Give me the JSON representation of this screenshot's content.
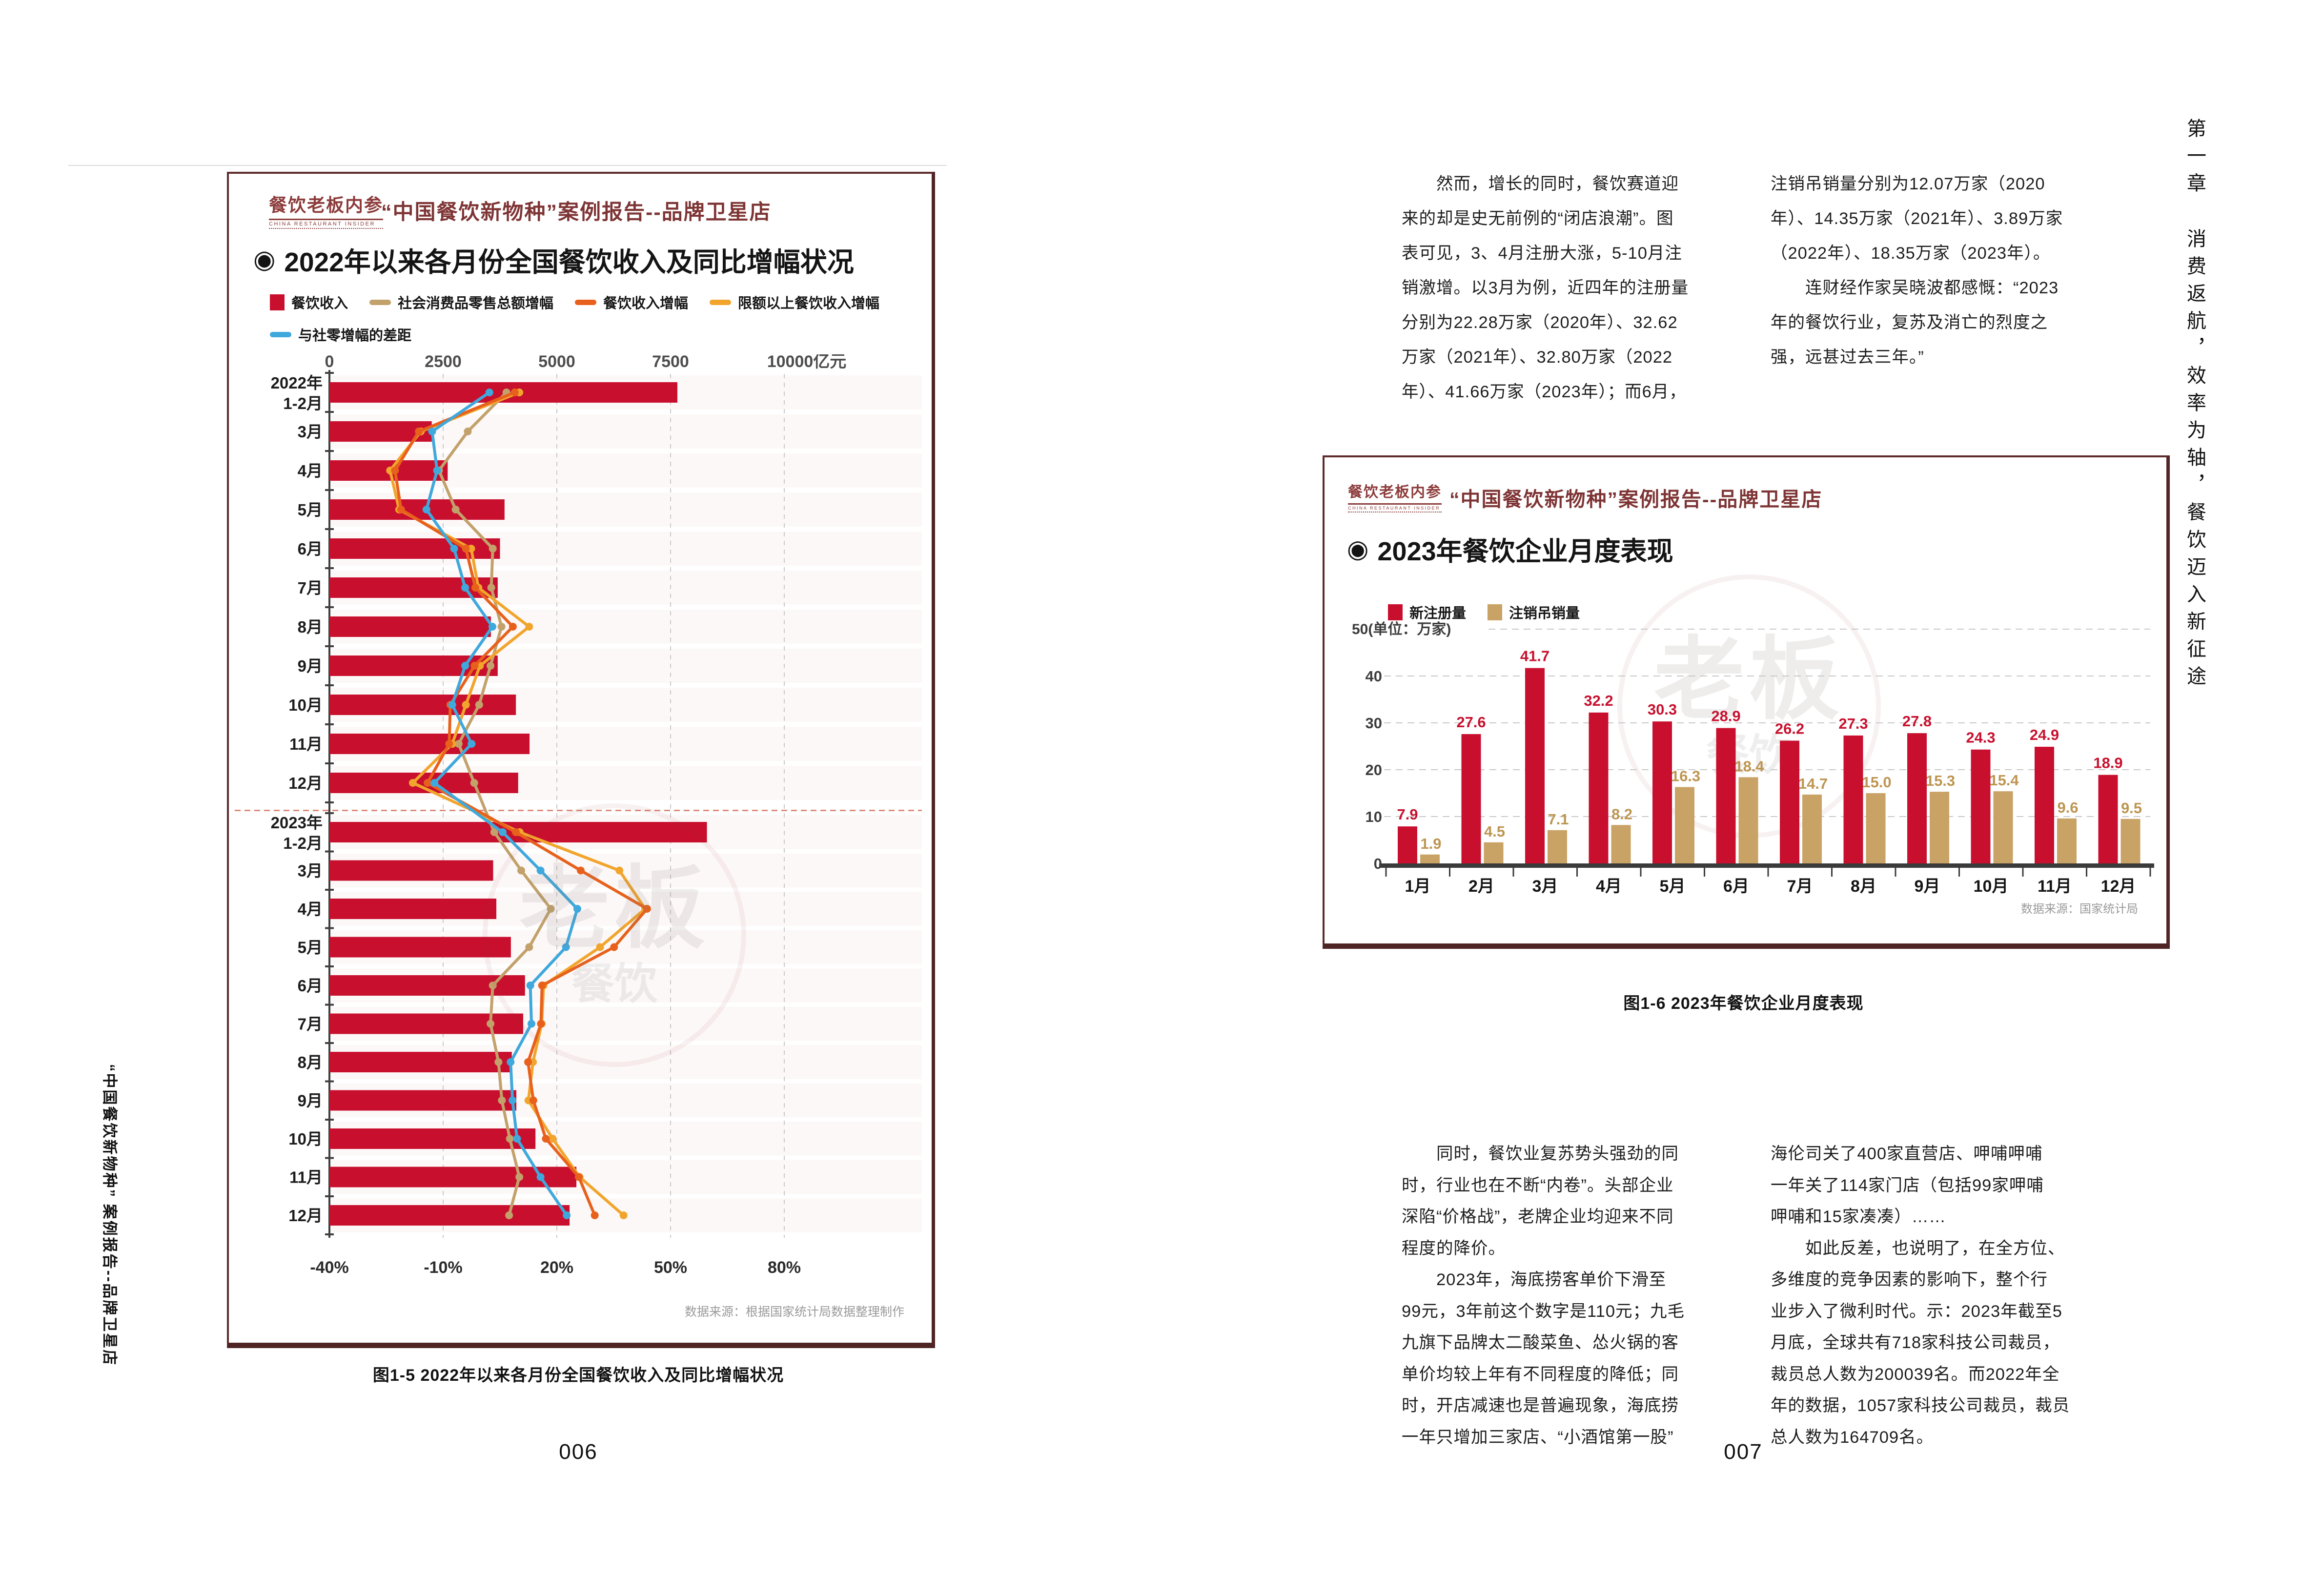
{
  "brand": {
    "logo": "餐饮老板内参",
    "logo_sub": "CHINA RESTAURANT INSIDER",
    "series_title": "“中国餐饮新物种”案例报告--品牌卫星店"
  },
  "left_page": {
    "margin_text": "“中国餐饮新物种” 案例报告--品牌卫星店",
    "page_number": "006",
    "caption": "图1-5 2022年以来各月份全国餐饮收入及同比增幅状况"
  },
  "right_page": {
    "page_number": "007",
    "caption": "图1-6 2023年餐饮企业月度表现",
    "chapter_marker": {
      "chapter": "第一章",
      "title": "消费返航，效率为轴，餐饮迈入新征途"
    },
    "text_top": {
      "col1": [
        "　　然而，增长的同时，餐饮赛道迎",
        "来的却是史无前例的“闭店浪潮”。图",
        "表可见，3、4月注册大涨，5-10月注",
        "销激增。以3月为例，近四年的注册量",
        "分别为22.28万家（2020年）、32.62",
        "万家（2021年）、32.80万家（2022",
        "年）、41.66万家（2023年）；而6月，"
      ],
      "col2": [
        "注销吊销量分别为12.07万家（2020",
        "年）、14.35万家（2021年）、3.89万家",
        "（2022年）、18.35万家（2023年）。",
        "　　连财经作家吴晓波都感慨：“2023",
        "年的餐饮行业，复苏及消亡的烈度之",
        "强，远甚过去三年。”"
      ]
    },
    "text_bottom": {
      "col1": [
        "　　同时，餐饮业复苏势头强劲的同",
        "时，行业也在不断“内卷”。头部企业",
        "深陷“价格战”，老牌企业均迎来不同",
        "程度的降价。",
        "　　2023年，海底捞客单价下滑至",
        "99元，3年前这个数字是110元；九毛",
        "九旗下品牌太二酸菜鱼、怂火锅的客",
        "单价均较上年有不同程度的降低；同",
        "时，开店减速也是普遍现象，海底捞",
        "一年只增加三家店、“小酒馆第一股”"
      ],
      "col2": [
        "海伦司关了400家直营店、呷哺呷哺",
        "一年关了114家门店（包括99家呷哺",
        "呷哺和15家凑凑）……",
        "　　如此反差，也说明了，在全方位、",
        "多维度的竞争因素的影响下，整个行",
        "业步入了微利时代。示：2023年截至5",
        "月底，全球共有718家科技公司裁员，",
        "裁员总人数为200039名。而2022年全",
        "年的数据，1057家科技公司裁员，裁员",
        "总人数为164709名。"
      ]
    }
  },
  "chart_data": [
    {
      "type": "bar+line",
      "orientation": "horizontal",
      "title": "2022年以来各月份全国餐饮收入及同比增幅状况",
      "bullet": "◉",
      "top_axis": {
        "ticks": [
          0,
          2500,
          5000,
          7500,
          10000
        ],
        "unit": "亿元"
      },
      "bottom_axis": {
        "tick_labels": [
          "-40%",
          "-10%",
          "20%",
          "50%",
          "80%"
        ],
        "range": [
          -40,
          80
        ]
      },
      "categories": [
        "2022年|1-2月",
        "3月",
        "4月",
        "5月",
        "6月",
        "7月",
        "8月",
        "9月",
        "10月",
        "11月",
        "12月",
        "2023年|1-2月",
        "3月",
        "4月",
        "5月",
        "6月",
        "7月",
        "8月",
        "9月",
        "10月",
        "11月",
        "12月"
      ],
      "year_divider_after_index": 10,
      "bars": {
        "name": "餐饮收入",
        "color": "#c8102e",
        "values": [
          7650,
          2250,
          2600,
          3850,
          3750,
          3700,
          3550,
          3700,
          4100,
          4400,
          4150,
          8300,
          3600,
          3670,
          3990,
          4300,
          4260,
          4010,
          4110,
          4530,
          5430,
          5280
        ]
      },
      "lines": [
        {
          "name": "社会消费品零售总额增幅",
          "color": "#c2a16b",
          "values": [
            6.7,
            -3.5,
            -11.1,
            -6.7,
            3.1,
            2.7,
            5.4,
            2.5,
            -0.5,
            -5.9,
            -1.8,
            3.5,
            10.6,
            18.4,
            12.7,
            3.1,
            2.5,
            4.6,
            5.5,
            7.6,
            10.1,
            7.4
          ]
        },
        {
          "name": "餐饮收入增幅",
          "color": "#e8611c",
          "values": [
            8.9,
            -16.4,
            -22.7,
            -21.1,
            -4.0,
            -1.5,
            8.4,
            -1.7,
            -8.1,
            -8.4,
            -14.1,
            9.2,
            26.3,
            43.8,
            35.1,
            16.1,
            15.8,
            12.4,
            13.8,
            17.1,
            25.8,
            30.0
          ]
        },
        {
          "name": "限额以上餐饮收入增幅",
          "color": "#f2a52d",
          "values": [
            10.1,
            -15.9,
            -24.0,
            -21.6,
            -2.6,
            -0.7,
            12.7,
            -0.3,
            -4.0,
            -7.6,
            -18.0,
            10.2,
            36.5,
            43.3,
            31.4,
            16.5,
            16.0,
            13.7,
            12.5,
            18.9,
            26.0,
            37.6
          ]
        },
        {
          "name": "与社零增幅的差距",
          "color": "#3fa8dc",
          "values": [
            2.2,
            -12.9,
            -11.6,
            -14.4,
            -7.1,
            -4.2,
            3.0,
            -4.2,
            -7.6,
            -2.5,
            -12.3,
            5.7,
            15.7,
            25.4,
            22.4,
            13.0,
            13.3,
            7.8,
            8.3,
            9.5,
            15.7,
            22.6
          ]
        }
      ],
      "source": "数据来源：根据国家统计局数据整理制作",
      "watermark": {
        "big": "老板",
        "small": "餐饮"
      }
    },
    {
      "type": "bar",
      "title": "2023年餐饮企业月度表现",
      "bullet": "◉",
      "categories": [
        "1月",
        "2月",
        "3月",
        "4月",
        "5月",
        "6月",
        "7月",
        "8月",
        "9月",
        "10月",
        "11月",
        "12月"
      ],
      "series": [
        {
          "name": "新注册量",
          "color": "#c8102e",
          "label_color": "#c8102e",
          "values": [
            7.9,
            27.6,
            41.7,
            32.2,
            30.3,
            28.9,
            26.2,
            27.3,
            27.8,
            24.3,
            24.9,
            18.9
          ]
        },
        {
          "name": "注销吊销量",
          "color": "#c9a265",
          "label_color": "#bd9551",
          "values": [
            1.9,
            4.5,
            7.1,
            8.2,
            16.3,
            18.4,
            14.7,
            15.0,
            15.3,
            15.4,
            9.6,
            9.5
          ]
        }
      ],
      "yticks": [
        0,
        10,
        20,
        30,
        40
      ],
      "ylim": [
        0,
        50
      ],
      "top_label": "50(单位：万家)",
      "source": "数据来源：国家统计局",
      "watermark": {
        "big": "老板",
        "small": "餐饮"
      }
    }
  ]
}
